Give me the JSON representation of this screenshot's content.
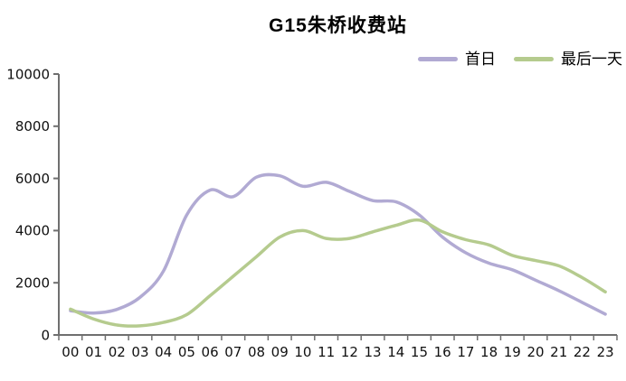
{
  "chart_data": {
    "type": "line",
    "title": "G15朱桥收费站",
    "xlabel": "",
    "ylabel": "",
    "categories": [
      "00",
      "01",
      "02",
      "03",
      "04",
      "05",
      "06",
      "07",
      "08",
      "09",
      "10",
      "11",
      "12",
      "13",
      "14",
      "15",
      "16",
      "17",
      "18",
      "19",
      "20",
      "21",
      "22",
      "23"
    ],
    "series": [
      {
        "name": "首日",
        "color": "#b1aad3",
        "values": [
          930,
          840,
          980,
          1450,
          2450,
          4600,
          5550,
          5300,
          6050,
          6100,
          5700,
          5850,
          5500,
          5150,
          5100,
          4600,
          3750,
          3150,
          2750,
          2500,
          2100,
          1700,
          1250,
          800
        ]
      },
      {
        "name": "最后一天",
        "color": "#b5cb8e",
        "values": [
          990,
          610,
          380,
          350,
          480,
          780,
          1500,
          2250,
          3000,
          3750,
          4000,
          3700,
          3700,
          3950,
          4200,
          4400,
          3950,
          3650,
          3450,
          3050,
          2850,
          2650,
          2200,
          1650
        ]
      }
    ],
    "ylim": [
      0,
      10000
    ],
    "y_ticks": [
      0,
      2000,
      4000,
      6000,
      8000,
      10000
    ],
    "smooth": true,
    "grid": false,
    "legend_position": "top-right",
    "axis_color": "#6f6f6f",
    "label_color": "#111111"
  }
}
